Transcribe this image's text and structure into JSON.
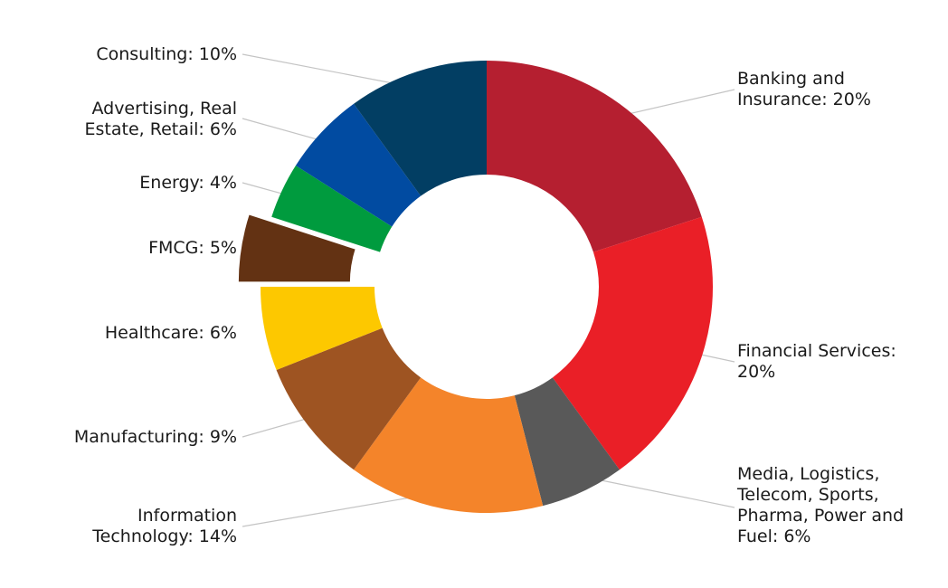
{
  "chart_data": {
    "type": "pie",
    "variant": "donut",
    "title": "",
    "slices": [
      {
        "label": "Banking and Insurance",
        "value": 20,
        "color": "#b51f30",
        "label_lines": [
          "Banking and",
          "Insurance: 20%"
        ],
        "label_side": "right",
        "exploded": false
      },
      {
        "label": "Financial Services",
        "value": 20,
        "color": "#ea1f27",
        "label_lines": [
          "Financial Services:",
          "20%"
        ],
        "label_side": "right",
        "exploded": false
      },
      {
        "label": "Media, Logistics, Telecom, Sports, Pharma, Power and Fuel",
        "value": 6,
        "color": "#595959",
        "label_lines": [
          "Media, Logistics,",
          "Telecom, Sports,",
          "Pharma, Power and",
          "Fuel: 6%"
        ],
        "label_side": "right",
        "exploded": false
      },
      {
        "label": "Information Technology",
        "value": 14,
        "color": "#f4842a",
        "label_lines": [
          "Information",
          "Technology: 14%"
        ],
        "label_side": "left",
        "exploded": false
      },
      {
        "label": "Manufacturing",
        "value": 9,
        "color": "#9e5422",
        "label_lines": [
          "Manufacturing: 9%"
        ],
        "label_side": "left",
        "exploded": false
      },
      {
        "label": "Healthcare",
        "value": 6,
        "color": "#fdc800",
        "label_lines": [
          "Healthcare: 6%"
        ],
        "label_side": "left",
        "exploded": false
      },
      {
        "label": "FMCG",
        "value": 5,
        "color": "#633213",
        "label_lines": [
          "FMCG: 5%"
        ],
        "label_side": "left",
        "exploded": true
      },
      {
        "label": "Energy",
        "value": 4,
        "color": "#009b3e",
        "label_lines": [
          "Energy: 4%"
        ],
        "label_side": "left",
        "exploded": false
      },
      {
        "label": "Advertising, Real Estate, Retail",
        "value": 6,
        "color": "#014ba1",
        "label_lines": [
          "Advertising, Real",
          "Estate, Retail: 6%"
        ],
        "label_side": "left",
        "exploded": false
      },
      {
        "label": "Consulting",
        "value": 10,
        "color": "#023e63",
        "label_lines": [
          "Consulting: 10%"
        ],
        "label_side": "left",
        "exploded": false
      }
    ],
    "legend": "none",
    "data_labels": "outside with leader lines"
  }
}
